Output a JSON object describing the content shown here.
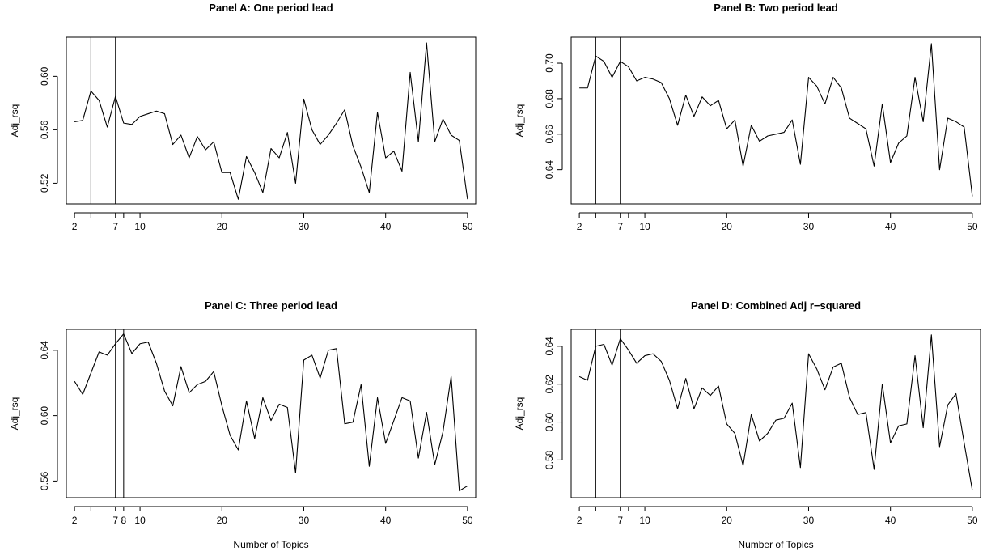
{
  "chart_data": [
    {
      "type": "line",
      "title": "Panel A: One period lead",
      "xlabel": "",
      "ylabel": "Adj_rsq",
      "xlim": [
        1,
        51
      ],
      "ylim": [
        0.5045,
        0.6293
      ],
      "x_ticks": [
        2,
        7,
        10,
        20,
        30,
        40,
        50
      ],
      "x_minor_ticks": [
        4,
        8
      ],
      "y_ticks": [
        0.52,
        0.56,
        0.6
      ],
      "y_tick_labels": [
        "0.52",
        "0.56",
        "0.60"
      ],
      "vlines": [
        4,
        7
      ],
      "x": [
        2,
        3,
        4,
        5,
        6,
        7,
        8,
        9,
        10,
        11,
        12,
        13,
        14,
        15,
        16,
        17,
        18,
        19,
        20,
        21,
        22,
        23,
        24,
        25,
        26,
        27,
        28,
        29,
        30,
        31,
        32,
        33,
        34,
        35,
        36,
        37,
        38,
        39,
        40,
        41,
        42,
        43,
        44,
        45,
        46,
        47,
        48,
        49,
        50
      ],
      "values": [
        0.566,
        0.567,
        0.589,
        0.582,
        0.562,
        0.585,
        0.565,
        0.564,
        0.57,
        0.572,
        0.574,
        0.572,
        0.549,
        0.556,
        0.539,
        0.555,
        0.545,
        0.551,
        0.528,
        0.528,
        0.508,
        0.54,
        0.528,
        0.513,
        0.546,
        0.539,
        0.558,
        0.52,
        0.583,
        0.56,
        0.549,
        0.556,
        0.565,
        0.575,
        0.548,
        0.532,
        0.513,
        0.573,
        0.539,
        0.544,
        0.529,
        0.603,
        0.551,
        0.625,
        0.551,
        0.568,
        0.556,
        0.552,
        0.508
      ]
    },
    {
      "type": "line",
      "title": "Panel B: Two period lead",
      "xlabel": "",
      "ylabel": "Adj_rsq",
      "xlim": [
        1,
        51
      ],
      "ylim": [
        0.6207,
        0.7146
      ],
      "x_ticks": [
        2,
        7,
        10,
        20,
        30,
        40,
        50
      ],
      "x_minor_ticks": [
        4,
        8
      ],
      "y_ticks": [
        0.64,
        0.66,
        0.68,
        0.7
      ],
      "y_tick_labels": [
        "0.64",
        "0.66",
        "0.68",
        "0.70"
      ],
      "vlines": [
        4,
        7
      ],
      "x": [
        2,
        3,
        4,
        5,
        6,
        7,
        8,
        9,
        10,
        11,
        12,
        13,
        14,
        15,
        16,
        17,
        18,
        19,
        20,
        21,
        22,
        23,
        24,
        25,
        26,
        27,
        28,
        29,
        30,
        31,
        32,
        33,
        34,
        35,
        36,
        37,
        38,
        39,
        40,
        41,
        42,
        43,
        44,
        45,
        46,
        47,
        48,
        49,
        50
      ],
      "values": [
        0.686,
        0.686,
        0.704,
        0.701,
        0.692,
        0.701,
        0.698,
        0.69,
        0.692,
        0.691,
        0.689,
        0.68,
        0.665,
        0.682,
        0.67,
        0.681,
        0.676,
        0.679,
        0.663,
        0.668,
        0.642,
        0.665,
        0.656,
        0.659,
        0.66,
        0.661,
        0.668,
        0.643,
        0.692,
        0.687,
        0.677,
        0.692,
        0.686,
        0.669,
        0.666,
        0.663,
        0.642,
        0.677,
        0.644,
        0.655,
        0.659,
        0.692,
        0.667,
        0.711,
        0.64,
        0.669,
        0.667,
        0.664,
        0.625
      ]
    },
    {
      "type": "line",
      "title": "Panel C: Three period lead",
      "xlabel": "Number of Topics",
      "ylabel": "Adj_rsq",
      "xlim": [
        1,
        51
      ],
      "ylim": [
        0.5498,
        0.6528
      ],
      "x_ticks": [
        2,
        7,
        8,
        10,
        20,
        30,
        40,
        50
      ],
      "x_minor_ticks": [
        4
      ],
      "y_ticks": [
        0.56,
        0.6,
        0.64
      ],
      "y_tick_labels": [
        "0.56",
        "0.60",
        "0.64"
      ],
      "vlines": [
        7,
        8
      ],
      "x": [
        2,
        3,
        4,
        5,
        6,
        7,
        8,
        9,
        10,
        11,
        12,
        13,
        14,
        15,
        16,
        17,
        18,
        19,
        20,
        21,
        22,
        23,
        24,
        25,
        26,
        27,
        28,
        29,
        30,
        31,
        32,
        33,
        34,
        35,
        36,
        37,
        38,
        39,
        40,
        41,
        42,
        43,
        44,
        45,
        46,
        47,
        48,
        49,
        50
      ],
      "values": [
        0.621,
        0.613,
        0.626,
        0.639,
        0.637,
        0.644,
        0.65,
        0.638,
        0.644,
        0.645,
        0.632,
        0.615,
        0.606,
        0.63,
        0.614,
        0.619,
        0.621,
        0.627,
        0.606,
        0.588,
        0.579,
        0.609,
        0.586,
        0.611,
        0.597,
        0.607,
        0.605,
        0.565,
        0.634,
        0.637,
        0.623,
        0.64,
        0.641,
        0.595,
        0.596,
        0.619,
        0.569,
        0.611,
        0.583,
        0.597,
        0.611,
        0.609,
        0.574,
        0.602,
        0.57,
        0.59,
        0.624,
        0.554,
        0.557
      ]
    },
    {
      "type": "line",
      "title": "Panel D: Combined Adj r−squared",
      "xlabel": "Number of Topics",
      "ylabel": "Adj_rsq",
      "xlim": [
        1,
        51
      ],
      "ylim": [
        0.5601,
        0.6489
      ],
      "x_ticks": [
        2,
        7,
        10,
        20,
        30,
        40,
        50
      ],
      "x_minor_ticks": [
        4,
        8
      ],
      "y_ticks": [
        0.58,
        0.6,
        0.62,
        0.64
      ],
      "y_tick_labels": [
        "0.58",
        "0.60",
        "0.62",
        "0.64"
      ],
      "vlines": [
        4,
        7
      ],
      "x": [
        2,
        3,
        4,
        5,
        6,
        7,
        8,
        9,
        10,
        11,
        12,
        13,
        14,
        15,
        16,
        17,
        18,
        19,
        20,
        21,
        22,
        23,
        24,
        25,
        26,
        27,
        28,
        29,
        30,
        31,
        32,
        33,
        34,
        35,
        36,
        37,
        38,
        39,
        40,
        41,
        42,
        43,
        44,
        45,
        46,
        47,
        48,
        49,
        50
      ],
      "values": [
        0.624,
        0.622,
        0.64,
        0.641,
        0.63,
        0.644,
        0.638,
        0.631,
        0.635,
        0.636,
        0.632,
        0.622,
        0.607,
        0.623,
        0.607,
        0.618,
        0.614,
        0.619,
        0.599,
        0.594,
        0.577,
        0.604,
        0.59,
        0.594,
        0.601,
        0.602,
        0.61,
        0.576,
        0.636,
        0.628,
        0.617,
        0.629,
        0.631,
        0.613,
        0.604,
        0.605,
        0.575,
        0.62,
        0.589,
        0.598,
        0.599,
        0.635,
        0.597,
        0.646,
        0.587,
        0.609,
        0.615,
        0.589,
        0.564
      ]
    }
  ]
}
